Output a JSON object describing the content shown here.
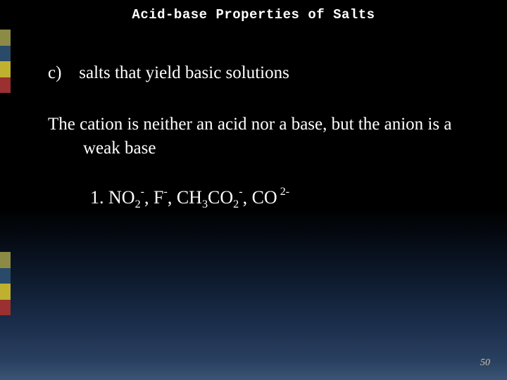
{
  "title": "Acid-base Properties of Salts",
  "item_label": "c)",
  "item_text": "salts that yield basic solutions",
  "paragraph": "The cation is neither an acid nor a base, but the anion is a weak base",
  "formula_prefix": "1.  ",
  "ions": [
    {
      "base": "NO",
      "sub": "2",
      "sup": "-"
    },
    {
      "base": "F",
      "sub": "",
      "sup": "-"
    },
    {
      "base": "CH",
      "sub": "3",
      "base2": "CO",
      "sub2": "2",
      "sup": "-"
    },
    {
      "base": "CO",
      "sub": "",
      "sup": " 2-"
    }
  ],
  "page_number": "50",
  "colors": {
    "background_top": "#000000",
    "background_bottom": "#3a5575",
    "text": "#ffffff",
    "page_num": "#d8c8a0",
    "accent": [
      "#8b8b45",
      "#2a4a6a",
      "#c0b030",
      "#9a3030"
    ]
  },
  "typography": {
    "title_font": "Consolas, monospace",
    "body_font": "Georgia, serif",
    "title_size_pt": 14,
    "body_size_pt": 19,
    "formula_size_pt": 20
  }
}
